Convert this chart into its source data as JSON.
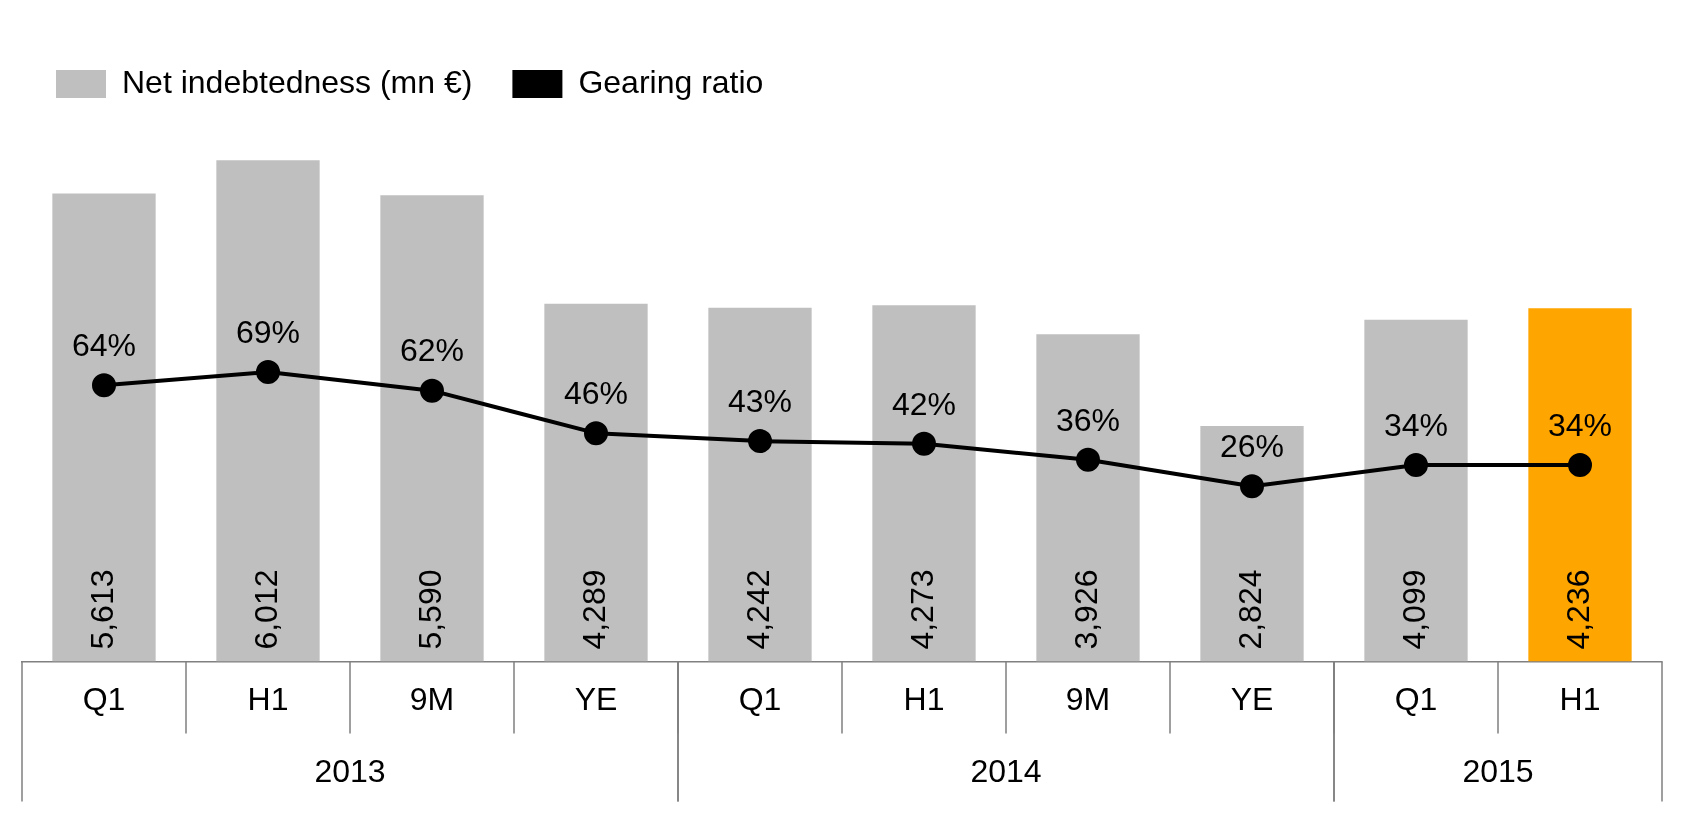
{
  "chart_data": {
    "type": "bar",
    "categories": [
      "Q1",
      "H1",
      "9M",
      "YE",
      "Q1",
      "H1",
      "9M",
      "YE",
      "Q1",
      "H1"
    ],
    "series": [
      {
        "name": "Net indebtedness (mn €)",
        "color": "#bfbfbf",
        "colors": [
          "#bfbfbf",
          "#bfbfbf",
          "#bfbfbf",
          "#bfbfbf",
          "#bfbfbf",
          "#bfbfbf",
          "#bfbfbf",
          "#bfbfbf",
          "#bfbfbf",
          "#ffa500"
        ],
        "values": [
          5613,
          6012,
          5590,
          4289,
          4242,
          4273,
          3926,
          2824,
          4099,
          4236
        ],
        "value_labels": [
          "5,613",
          "6,012",
          "5,590",
          "4,289",
          "4,242",
          "4,273",
          "3,926",
          "2,824",
          "4,099",
          "4,236"
        ]
      },
      {
        "name": "Gearing ratio",
        "type": "line",
        "axis": "y2",
        "color": "#000000",
        "values": [
          64,
          69,
          62,
          46,
          43,
          42,
          36,
          26,
          34,
          34
        ],
        "value_labels": [
          "64%",
          "69%",
          "62%",
          "46%",
          "43%",
          "42%",
          "36%",
          "26%",
          "34%",
          "34%"
        ]
      }
    ],
    "annotations": [
      "2013",
      "2014",
      "2015"
    ],
    "data_labels": true,
    "legend": "top left",
    "marker": "circle",
    "grid": false
  }
}
